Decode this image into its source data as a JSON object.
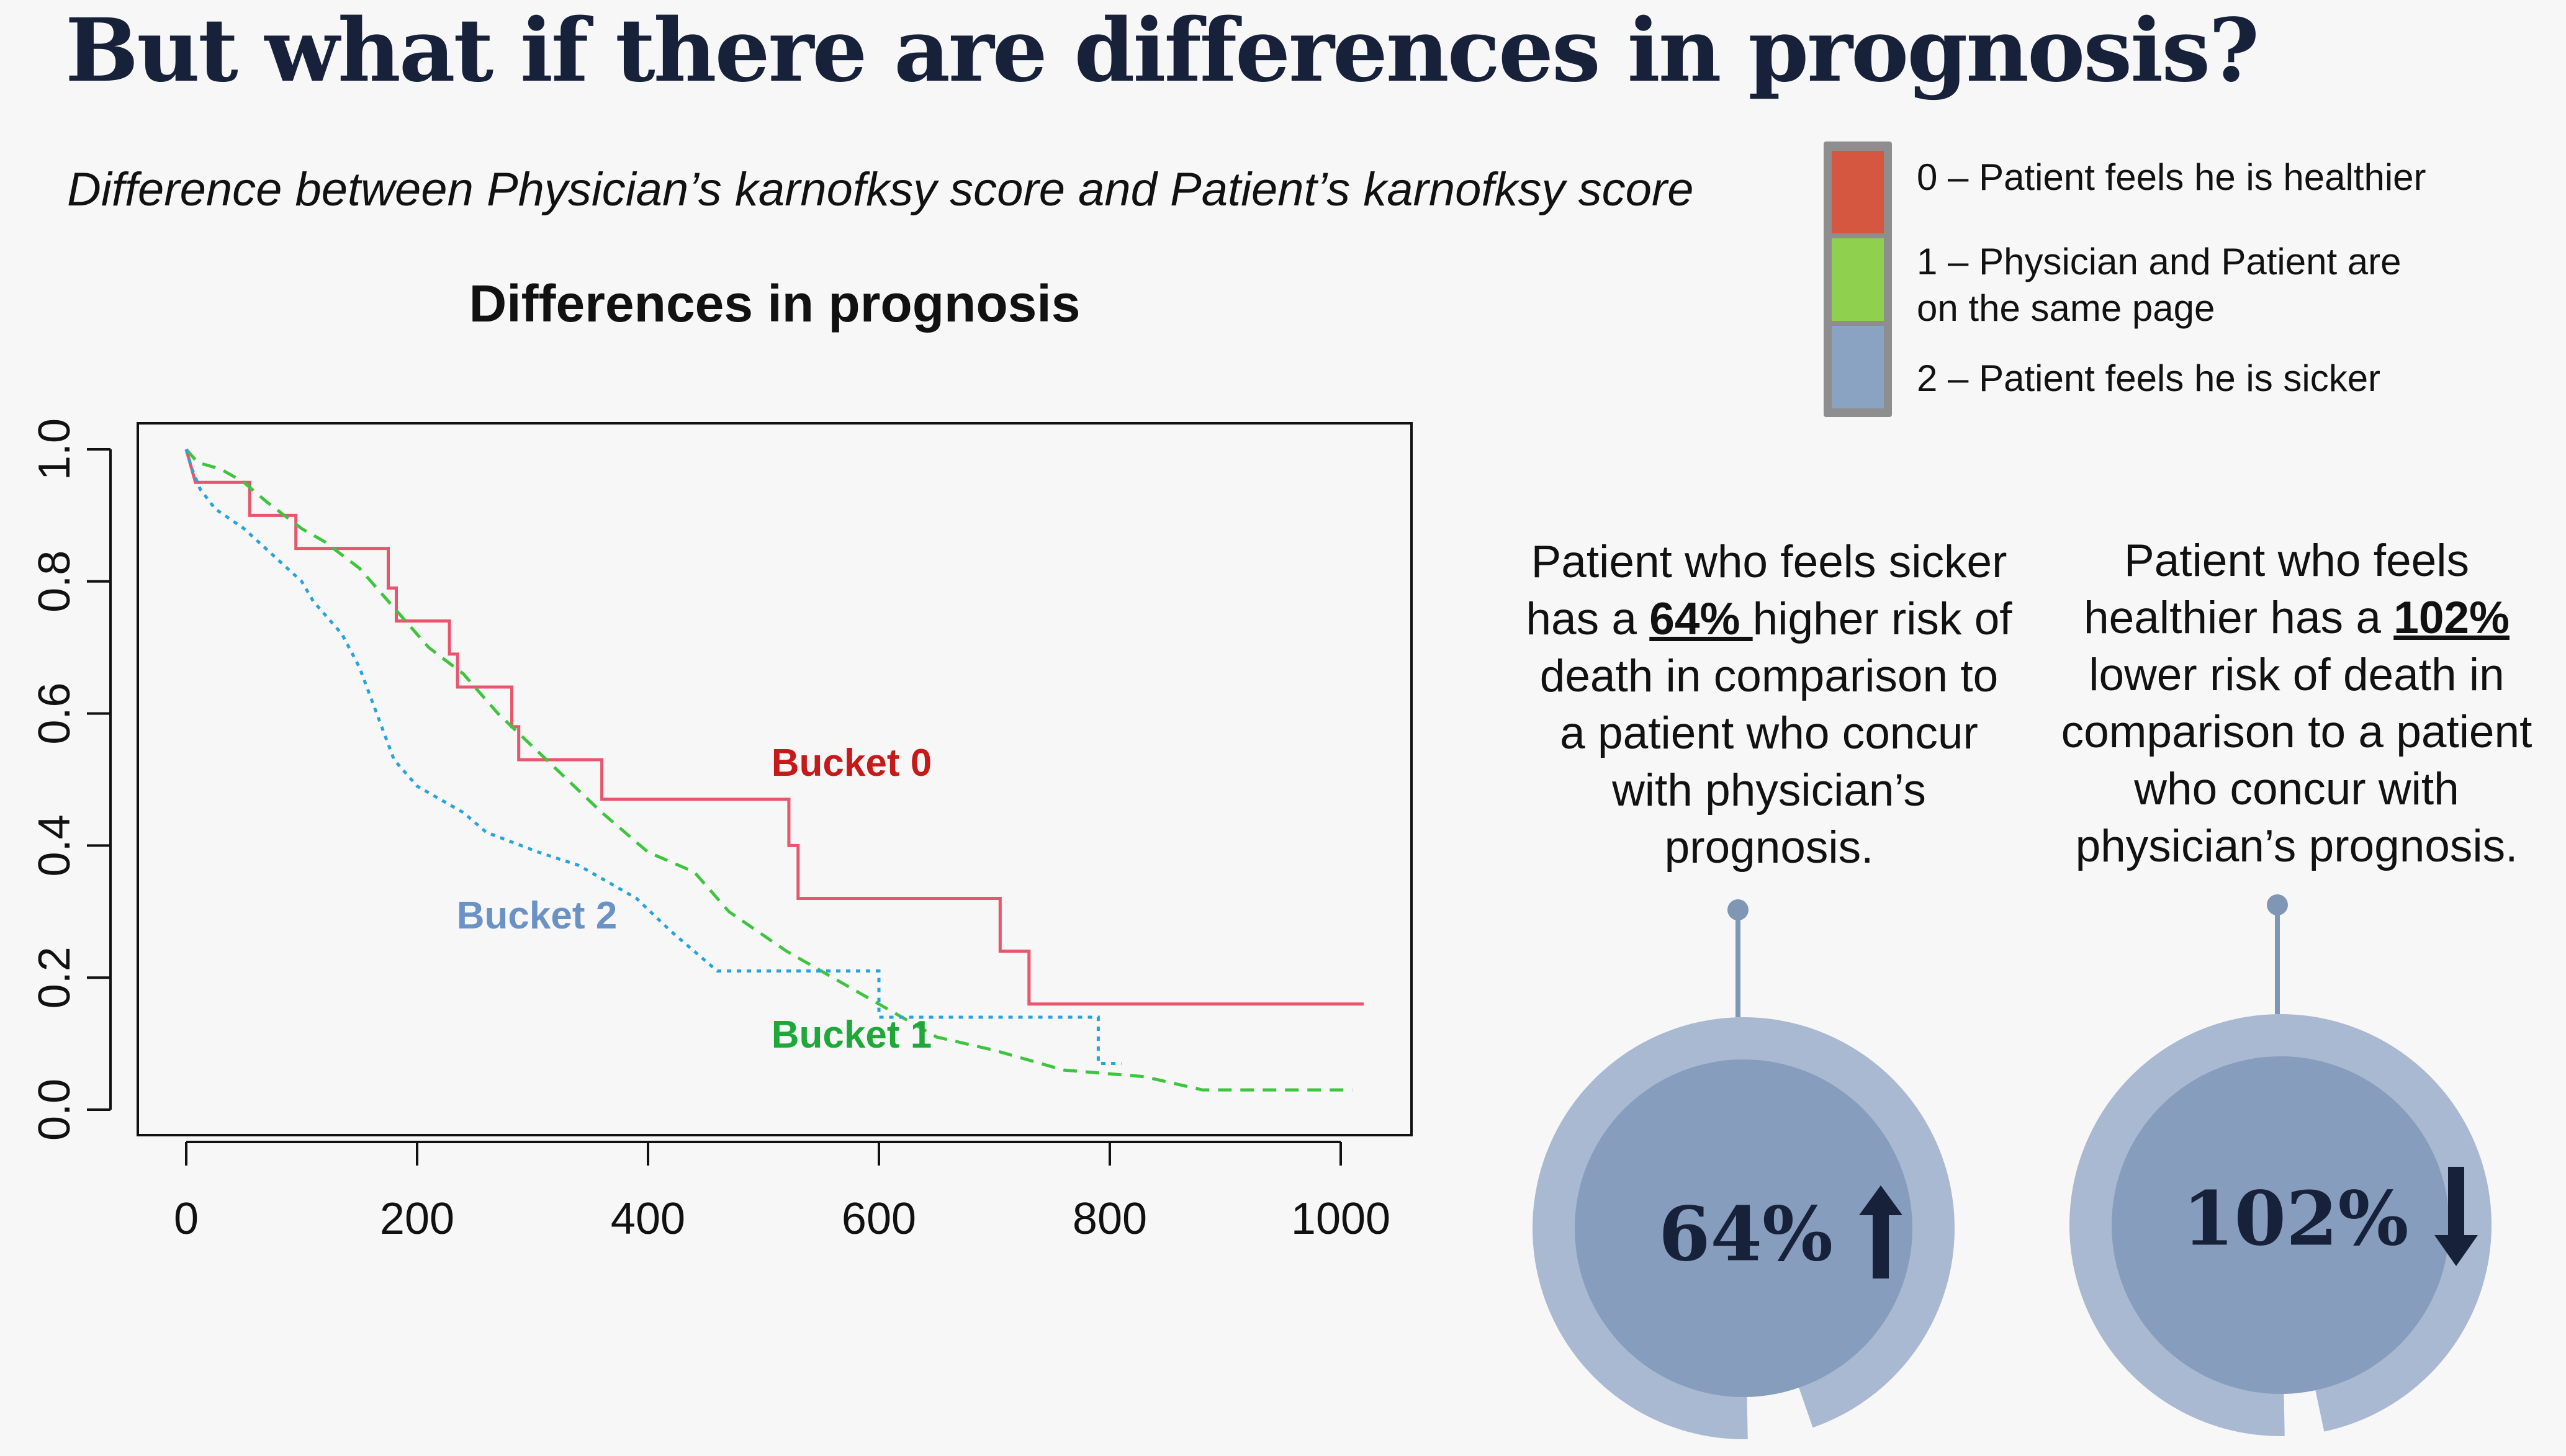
{
  "header": {
    "title": "But what if there are differences in prognosis?",
    "subtitle": "Difference between Physician’s karnofksy score and Patient’s karnofksy score"
  },
  "legend": {
    "items": [
      {
        "label_lines": [
          "0 – Patient feels he is healthier"
        ],
        "color": "#d6573f"
      },
      {
        "label_lines": [
          "1 – Physician and Patient are",
          "on the same page"
        ],
        "color": "#8fd14f"
      },
      {
        "label_lines": [
          "2 – Patient feels he is sicker"
        ],
        "color": "#8aa3c2"
      }
    ]
  },
  "chart_data": {
    "type": "line",
    "title": "Differences in prognosis",
    "xlabel": "",
    "ylabel": "",
    "xlim": [
      0,
      1050
    ],
    "ylim": [
      0,
      1
    ],
    "x_ticks": [
      "0",
      "200",
      "400",
      "600",
      "800",
      "1000"
    ],
    "y_ticks": [
      "0.0",
      "0.2",
      "0.4",
      "0.6",
      "0.8",
      "1.0"
    ],
    "grid": false,
    "series": [
      {
        "name": "Bucket 0",
        "color": "#e8556c",
        "label_color": "#c41a1a",
        "style": "solid",
        "points": [
          [
            0,
            1.0
          ],
          [
            8,
            0.95
          ],
          [
            55,
            0.95
          ],
          [
            55,
            0.9
          ],
          [
            95,
            0.9
          ],
          [
            95,
            0.85
          ],
          [
            175,
            0.85
          ],
          [
            175,
            0.79
          ],
          [
            182,
            0.79
          ],
          [
            182,
            0.74
          ],
          [
            228,
            0.74
          ],
          [
            228,
            0.69
          ],
          [
            235,
            0.69
          ],
          [
            235,
            0.64
          ],
          [
            282,
            0.64
          ],
          [
            282,
            0.58
          ],
          [
            288,
            0.58
          ],
          [
            288,
            0.53
          ],
          [
            360,
            0.53
          ],
          [
            360,
            0.47
          ],
          [
            522,
            0.47
          ],
          [
            522,
            0.4
          ],
          [
            530,
            0.4
          ],
          [
            530,
            0.32
          ],
          [
            705,
            0.32
          ],
          [
            705,
            0.24
          ],
          [
            730,
            0.24
          ],
          [
            730,
            0.16
          ],
          [
            1020,
            0.16
          ]
        ]
      },
      {
        "name": "Bucket 1",
        "color": "#3fc43f",
        "label_color": "#1fa83a",
        "style": "dashed",
        "points": [
          [
            0,
            1.0
          ],
          [
            10,
            0.98
          ],
          [
            30,
            0.97
          ],
          [
            50,
            0.95
          ],
          [
            70,
            0.92
          ],
          [
            100,
            0.88
          ],
          [
            120,
            0.86
          ],
          [
            150,
            0.82
          ],
          [
            170,
            0.78
          ],
          [
            190,
            0.74
          ],
          [
            210,
            0.7
          ],
          [
            240,
            0.66
          ],
          [
            270,
            0.6
          ],
          [
            300,
            0.55
          ],
          [
            330,
            0.5
          ],
          [
            360,
            0.45
          ],
          [
            380,
            0.42
          ],
          [
            400,
            0.39
          ],
          [
            440,
            0.36
          ],
          [
            470,
            0.3
          ],
          [
            520,
            0.24
          ],
          [
            560,
            0.2
          ],
          [
            600,
            0.16
          ],
          [
            650,
            0.11
          ],
          [
            700,
            0.09
          ],
          [
            760,
            0.06
          ],
          [
            830,
            0.05
          ],
          [
            880,
            0.03
          ],
          [
            1010,
            0.03
          ]
        ]
      },
      {
        "name": "Bucket 2",
        "color": "#28a4dc",
        "label_color": "#6b92c4",
        "style": "dotted",
        "points": [
          [
            0,
            1.0
          ],
          [
            5,
            0.97
          ],
          [
            12,
            0.94
          ],
          [
            25,
            0.91
          ],
          [
            50,
            0.88
          ],
          [
            75,
            0.84
          ],
          [
            100,
            0.8
          ],
          [
            110,
            0.77
          ],
          [
            135,
            0.72
          ],
          [
            150,
            0.67
          ],
          [
            165,
            0.6
          ],
          [
            180,
            0.53
          ],
          [
            200,
            0.49
          ],
          [
            240,
            0.45
          ],
          [
            260,
            0.42
          ],
          [
            305,
            0.39
          ],
          [
            340,
            0.37
          ],
          [
            390,
            0.32
          ],
          [
            420,
            0.27
          ],
          [
            460,
            0.21
          ],
          [
            600,
            0.21
          ],
          [
            600,
            0.14
          ],
          [
            790,
            0.14
          ],
          [
            790,
            0.07
          ],
          [
            810,
            0.07
          ]
        ]
      }
    ]
  },
  "annotations": [
    {
      "lines": [
        [
          "Patient who feels sicker"
        ],
        [
          "has a ",
          "64% ",
          " higher risk of"
        ],
        [
          "death in comparison to"
        ],
        [
          "a patient who concur"
        ],
        [
          "with physician’s"
        ],
        [
          "prognosis."
        ]
      ],
      "gauge_value": "64%",
      "direction": "up",
      "fill": 0.95
    },
    {
      "lines": [
        [
          "Patient who feels"
        ],
        [
          "healthier has a ",
          "102%",
          ""
        ],
        [
          "lower risk of death in"
        ],
        [
          "comparison to a patient"
        ],
        [
          "who concur with"
        ],
        [
          "physician’s prognosis."
        ]
      ],
      "gauge_value": "102%",
      "direction": "down",
      "fill": 0.97
    }
  ]
}
